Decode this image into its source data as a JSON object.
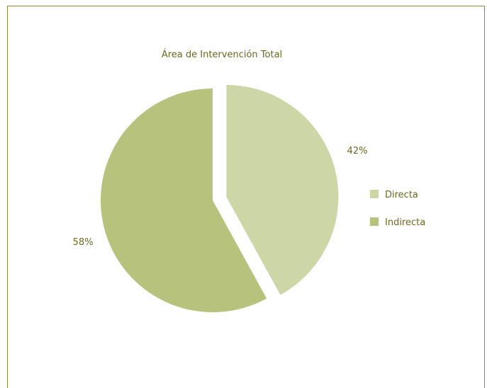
{
  "chart_data": {
    "type": "pie",
    "title": "Área de Intervención Total",
    "categories": [
      "Directa",
      "Indirecta"
    ],
    "values": [
      42,
      58
    ],
    "data_labels": [
      "42%",
      "58%"
    ],
    "exploded_slice": "Directa",
    "legend": {
      "placement": "right",
      "entries": [
        "Directa",
        "Indirecta"
      ]
    },
    "colors": {
      "Directa": "#cdd6a7",
      "Indirecta": "#b7c27d",
      "text": "#6b6a1f",
      "frame": "#8a8a3a"
    }
  }
}
